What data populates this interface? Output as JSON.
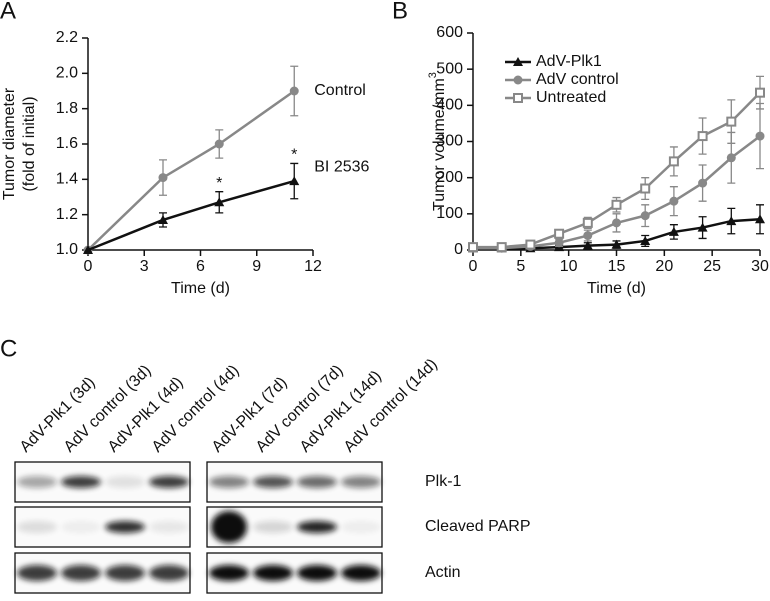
{
  "chart_data": [
    {
      "type": "line",
      "panel": "A",
      "xlabel": "Time (d)",
      "ylabel": [
        "Tumor diameter",
        "(fold of initial)"
      ],
      "xlim": [
        0,
        12
      ],
      "xticks": [
        0,
        3,
        6,
        9,
        12
      ],
      "ylim": [
        1.0,
        2.2
      ],
      "yticks": [
        {
          "value": 1.0,
          "label": "1.0"
        },
        1.2,
        1.4,
        1.6,
        1.8,
        {
          "value": 2.0,
          "label": "2.0"
        },
        2.2
      ],
      "annotations": [
        "*",
        "*"
      ],
      "series": [
        {
          "name": "Control",
          "color": "#888888",
          "marker": "circle",
          "x": [
            0,
            4,
            7,
            11
          ],
          "values": [
            1.0,
            1.41,
            1.6,
            1.9
          ],
          "errors": [
            0,
            0.1,
            0.08,
            0.14
          ]
        },
        {
          "name": "BI 2536",
          "color": "#111111",
          "marker": "triangle",
          "x": [
            0,
            4,
            7,
            11
          ],
          "values": [
            1.0,
            1.17,
            1.27,
            1.39
          ],
          "errors": [
            0,
            0.04,
            0.06,
            0.1
          ]
        }
      ]
    },
    {
      "type": "line",
      "panel": "B",
      "xlabel": "Time (d)",
      "ylabel": "Tumor volume/mm",
      "ylabel_superscript": "3",
      "xlim": [
        0,
        30
      ],
      "xticks": [
        0,
        5,
        10,
        15,
        20,
        25,
        30
      ],
      "ylim": [
        0,
        600
      ],
      "yticks": [
        0,
        100,
        200,
        300,
        400,
        500,
        600
      ],
      "legend": "upper left",
      "series": [
        {
          "name": "AdV-Plk1",
          "color": "#111111",
          "marker": "triangle",
          "x": [
            0,
            3,
            6,
            9,
            12,
            15,
            18,
            21,
            24,
            27,
            30
          ],
          "values": [
            5,
            5,
            5,
            8,
            12,
            15,
            25,
            50,
            62,
            80,
            85
          ],
          "errors": [
            3,
            3,
            3,
            5,
            8,
            10,
            15,
            20,
            30,
            35,
            40
          ]
        },
        {
          "name": "AdV control",
          "color": "#888888",
          "marker": "circle",
          "x": [
            0,
            3,
            6,
            9,
            12,
            15,
            18,
            21,
            24,
            27,
            30
          ],
          "values": [
            5,
            5,
            10,
            20,
            40,
            75,
            95,
            135,
            185,
            255,
            315
          ],
          "errors": [
            3,
            3,
            5,
            10,
            15,
            25,
            30,
            40,
            50,
            70,
            90
          ]
        },
        {
          "name": "Untreated",
          "color": "#888888",
          "marker": "open-square",
          "x": [
            0,
            3,
            6,
            9,
            12,
            15,
            18,
            21,
            24,
            27,
            30
          ],
          "values": [
            8,
            8,
            15,
            45,
            75,
            125,
            170,
            245,
            315,
            355,
            435
          ],
          "errors": [
            3,
            3,
            5,
            10,
            15,
            20,
            30,
            40,
            50,
            60,
            45
          ]
        }
      ]
    }
  ],
  "blot": {
    "panel": "C",
    "lanes": [
      "AdV-Plk1 (3d)",
      "AdV control (3d)",
      "AdV-Plk1 (4d)",
      "AdV control (4d)",
      "AdV-Plk1 (7d)",
      "AdV control (7d)",
      "AdV-Plk1 (14d)",
      "AdV control (14d)"
    ],
    "rows": [
      "Plk-1",
      "Cleaved PARP",
      "Actin"
    ]
  }
}
